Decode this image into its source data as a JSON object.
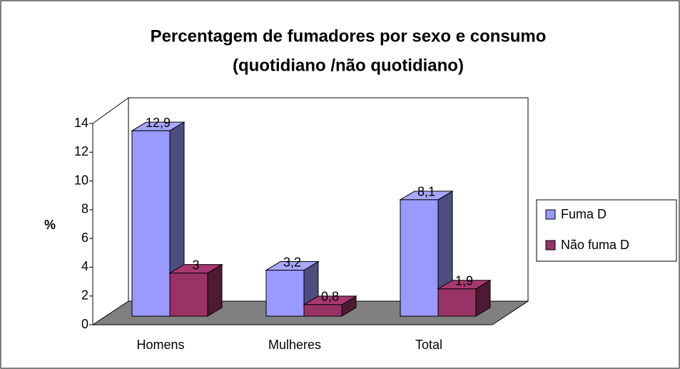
{
  "chart_data": {
    "type": "bar3d",
    "title": [
      "Percentagem de fumadores por sexo e  consumo",
      "(quotidiano /não quotidiano)"
    ],
    "y_label": "%",
    "categories": [
      "Homens",
      "Mulheres",
      "Total"
    ],
    "series": [
      {
        "name": "Fuma D",
        "color": "#9999ff",
        "values": [
          12.9,
          3.2,
          8.1
        ],
        "value_labels": [
          "12,9",
          "3,2",
          "8,1"
        ]
      },
      {
        "name": "Não fuma D",
        "color": "#993366",
        "values": [
          3,
          0.8,
          1.9
        ],
        "value_labels": [
          "3",
          "0,8",
          "1,9"
        ]
      }
    ],
    "ylim": [
      0,
      14
    ],
    "yticks": [
      0,
      2,
      4,
      6,
      8,
      10,
      12,
      14
    ],
    "grid": false,
    "legend": "right"
  }
}
